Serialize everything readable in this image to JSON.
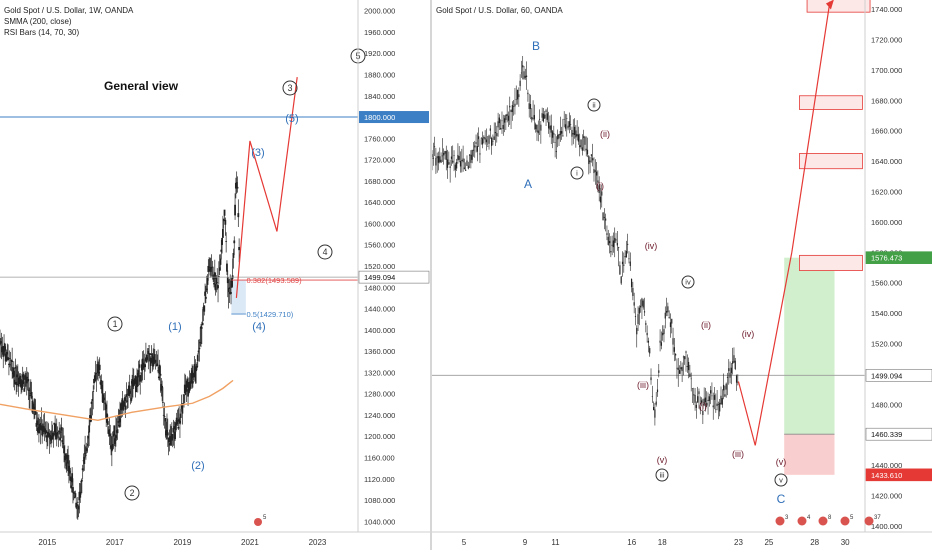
{
  "left_chart": {
    "legend": [
      "Gold Spot / U.S. Dollar, 1W, OANDA",
      "SMMA (200, close)",
      "RSI Bars (14, 70, 30)"
    ],
    "annotation_title": "General view",
    "hline_value": 1800,
    "hline_label": "1800.000",
    "current_price": 1499.094,
    "current_label": "1499.094",
    "fib_382_label": "0.382(1493.589)",
    "fib_382_value": 1493.589,
    "fib_5_label": "0.5(1429.710)",
    "fib_5_value": 1429.71,
    "wave_labels": [
      "1",
      "2",
      "3",
      "4",
      "5",
      "(1)",
      "(2)",
      "(3)",
      "(4)",
      "(5)"
    ],
    "event_badge": "5"
  },
  "right_chart": {
    "legend": [
      "Gold Spot / U.S. Dollar, 60, OANDA"
    ],
    "current_price": 1499.094,
    "current_label": "1499.094",
    "target_label": "1576.473",
    "stop_label": "1433.610",
    "entry_label": "1460.339",
    "wave_labels": [
      "A",
      "B",
      "C",
      "i",
      "ii",
      "iii",
      "iv",
      "v",
      "(i)",
      "(ii)",
      "(iii)",
      "(iv)",
      "(v)"
    ],
    "badges": [
      "3",
      "4",
      "8",
      "5",
      "37"
    ]
  },
  "chart_data": [
    {
      "type": "line",
      "title": "Gold Spot / U.S. Dollar, 1W, OANDA",
      "x_ticks": [
        "2015",
        "2017",
        "2019",
        "2021",
        "2023"
      ],
      "y_ticks": [
        "2000.000",
        "1960.000",
        "1920.000",
        "1880.000",
        "1840.000",
        "1800.000",
        "1760.000",
        "1720.000",
        "1680.000",
        "1640.000",
        "1600.000",
        "1560.000",
        "1520.000",
        "1480.000",
        "1440.000",
        "1400.000",
        "1360.000",
        "1320.000",
        "1280.000",
        "1240.000",
        "1200.000",
        "1160.000",
        "1120.000",
        "1080.000",
        "1040.000"
      ],
      "ylim": [
        1020,
        2020
      ],
      "xlim": [
        2013.6,
        2024.2
      ],
      "series": [
        {
          "name": "Gold Spot / U.S. Dollar",
          "x": [
            2013.6,
            2014.0,
            2014.4,
            2014.7,
            2015.0,
            2015.4,
            2015.9,
            2016.2,
            2016.5,
            2016.9,
            2017.2,
            2017.6,
            2018.0,
            2018.3,
            2018.6,
            2018.9,
            2019.1,
            2019.4,
            2019.6,
            2019.8,
            2019.95,
            2020.05,
            2020.15,
            2020.25,
            2020.35,
            2020.45,
            2020.52,
            2020.58,
            2020.62,
            2020.68
          ],
          "y": [
            1380,
            1320,
            1300,
            1230,
            1200,
            1210,
            1060,
            1200,
            1340,
            1180,
            1250,
            1300,
            1350,
            1330,
            1180,
            1230,
            1290,
            1320,
            1420,
            1520,
            1500,
            1480,
            1555,
            1620,
            1480,
            1470,
            1540,
            1660,
            1700,
            1560
          ]
        },
        {
          "name": "SMMA (200, close)",
          "x": [
            2013.6,
            2014.5,
            2015.5,
            2016.5,
            2017.5,
            2018.5,
            2019.3,
            2019.8,
            2020.2,
            2020.5
          ],
          "y": [
            1260,
            1250,
            1240,
            1230,
            1245,
            1255,
            1262,
            1275,
            1290,
            1305
          ]
        }
      ],
      "projection": {
        "x": [
          2020.6,
          2021.0,
          2021.8,
          2022.4
        ],
        "y": [
          1460,
          1755,
          1585,
          1875
        ]
      }
    },
    {
      "type": "line",
      "title": "Gold Spot / U.S. Dollar, 60, OANDA",
      "x_ticks": [
        "5",
        "9",
        "11",
        "16",
        "18",
        "23",
        "25",
        "28",
        "30"
      ],
      "y_ticks": [
        "1740.000",
        "1720.000",
        "1700.000",
        "1680.000",
        "1660.000",
        "1640.000",
        "1620.000",
        "1600.000",
        "1580.000",
        "1560.000",
        "1540.000",
        "1520.000",
        "1500.000",
        "1480.000",
        "1460.000",
        "1440.000",
        "1420.000",
        "1400.000"
      ],
      "ylim": [
        1396,
        1746
      ],
      "xlim": [
        2.9,
        31.3
      ],
      "series": [
        {
          "name": "Gold Spot / U.S. Dollar",
          "x": [
            2.9,
            4.0,
            5.0,
            6.2,
            7.0,
            8.0,
            8.5,
            9.0,
            9.4,
            9.8,
            10.3,
            11.0,
            11.5,
            12.3,
            12.9,
            13.5,
            14.0,
            14.5,
            15.0,
            15.3,
            15.8,
            16.3,
            16.8,
            17.2,
            17.5,
            17.9,
            18.4,
            19.0,
            19.6,
            20.1,
            20.7,
            21.2,
            21.7,
            22.3,
            22.7,
            23.0
          ],
          "y": [
            1645,
            1640,
            1638,
            1652,
            1658,
            1672,
            1685,
            1701,
            1672,
            1660,
            1668,
            1652,
            1662,
            1662,
            1650,
            1640,
            1615,
            1583,
            1592,
            1565,
            1580,
            1530,
            1548,
            1510,
            1468,
            1522,
            1545,
            1502,
            1508,
            1484,
            1478,
            1488,
            1474,
            1500,
            1509,
            1495
          ]
        }
      ],
      "projection": {
        "x": [
          23.0,
          24.1,
          26.5,
          29.0
        ],
        "y": [
          1495,
          1453,
          1580,
          1745
        ]
      },
      "resistance_zones": [
        [
          1738,
          1748
        ],
        [
          1674,
          1683
        ],
        [
          1635,
          1645
        ],
        [
          1568,
          1578
        ]
      ],
      "position": {
        "entry": 1460.339,
        "target": 1576.473,
        "stop": 1433.61
      }
    }
  ]
}
